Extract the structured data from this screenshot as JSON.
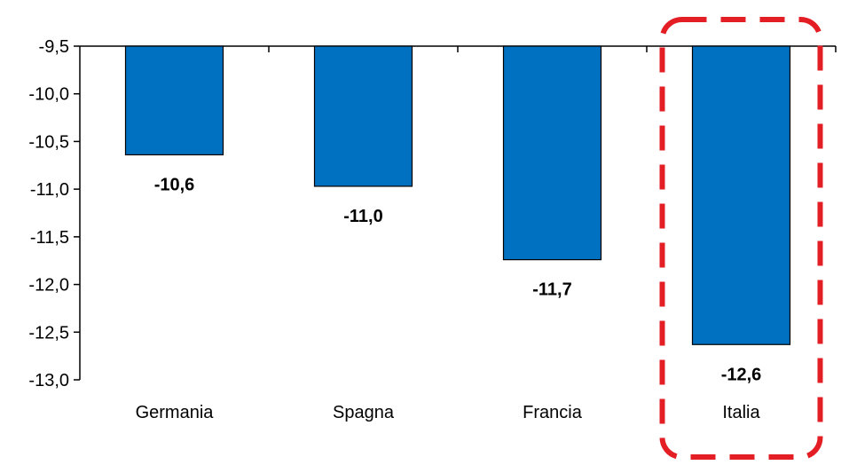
{
  "chart_data": {
    "type": "bar",
    "categories": [
      "Germania",
      "Spagna",
      "Francia",
      "Italia"
    ],
    "values": [
      -10.64,
      -10.97,
      -11.74,
      -12.63
    ],
    "data_labels": [
      "-10,6",
      "-11,0",
      "-11,7",
      "-12,6"
    ],
    "ylim": [
      -13.0,
      -9.5
    ],
    "yticks": [
      -9.5,
      -10.0,
      -10.5,
      -11.0,
      -11.5,
      -12.0,
      -12.5,
      -13.0
    ],
    "ytick_labels": [
      "-9,5",
      "-10,0",
      "-10,5",
      "-11,0",
      "-11,5",
      "-12,0",
      "-12,5",
      "-13,0"
    ],
    "title": "",
    "xlabel": "",
    "ylabel": "",
    "grid": false,
    "legend": "none",
    "highlight_category": "Italia"
  },
  "colors": {
    "bar_fill": "#0070C0",
    "bar_stroke": "#000000",
    "axis": "#000000",
    "highlight_box": "#E31E24"
  }
}
